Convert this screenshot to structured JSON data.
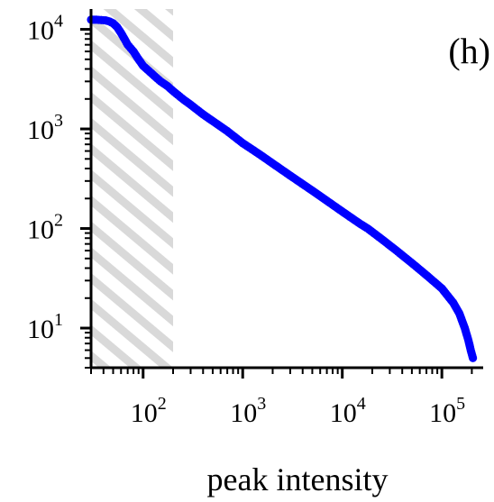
{
  "chart_data": {
    "type": "scatter",
    "title": "",
    "panel_label": "(h)",
    "xlabel": "peak intensity",
    "ylabel": "",
    "x_scale": "log",
    "y_scale": "log",
    "xlim": [
      30,
      260000
    ],
    "ylim": [
      4,
      16000
    ],
    "xticks": [
      {
        "value": 100,
        "base": "10",
        "exp": "2"
      },
      {
        "value": 1000,
        "base": "10",
        "exp": "3"
      },
      {
        "value": 10000,
        "base": "10",
        "exp": "4"
      },
      {
        "value": 100000,
        "base": "10",
        "exp": "5"
      }
    ],
    "yticks": [
      {
        "value": 10,
        "base": "10",
        "exp": "1"
      },
      {
        "value": 100,
        "base": "10",
        "exp": "2"
      },
      {
        "value": 1000,
        "base": "10",
        "exp": "3"
      },
      {
        "value": 10000,
        "base": "10",
        "exp": "4"
      }
    ],
    "shaded_region": {
      "x_from": 30,
      "x_to": 200,
      "pattern": "diagonal hatch",
      "color": "#d9d9d9"
    },
    "grid": false,
    "legend": "none",
    "series": [
      {
        "color": "#0000ff",
        "points": [
          [
            30,
            12500
          ],
          [
            34,
            12500
          ],
          [
            38,
            12400
          ],
          [
            42,
            12300
          ],
          [
            46,
            12000
          ],
          [
            50,
            11500
          ],
          [
            55,
            10500
          ],
          [
            60,
            9200
          ],
          [
            65,
            8000
          ],
          [
            70,
            7000
          ],
          [
            80,
            6000
          ],
          [
            90,
            5000
          ],
          [
            100,
            4300
          ],
          [
            115,
            3800
          ],
          [
            130,
            3400
          ],
          [
            150,
            3000
          ],
          [
            175,
            2700
          ],
          [
            200,
            2400
          ],
          [
            250,
            2000
          ],
          [
            300,
            1750
          ],
          [
            400,
            1400
          ],
          [
            500,
            1200
          ],
          [
            700,
            950
          ],
          [
            1000,
            720
          ],
          [
            1500,
            550
          ],
          [
            2000,
            450
          ],
          [
            3000,
            340
          ],
          [
            5000,
            240
          ],
          [
            7000,
            190
          ],
          [
            10000,
            148
          ],
          [
            15000,
            112
          ],
          [
            18000,
            100
          ],
          [
            25000,
            78
          ],
          [
            35000,
            60
          ],
          [
            50000,
            45
          ],
          [
            70000,
            34
          ],
          [
            100000,
            25
          ],
          [
            130000,
            18
          ],
          [
            150000,
            14
          ],
          [
            170000,
            10
          ],
          [
            185000,
            7.5
          ],
          [
            195000,
            6
          ],
          [
            205000,
            5
          ]
        ]
      }
    ]
  }
}
